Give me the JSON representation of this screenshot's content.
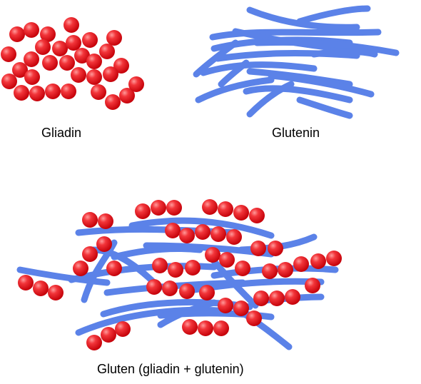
{
  "colors": {
    "gliadin_ball": "#e8141a",
    "glutenin_fiber": "#5b82e8",
    "background": "#ffffff"
  },
  "labels": {
    "gliadin": "Gliadin",
    "glutenin": "Glutenin",
    "gluten": "Gluten (gliadin + glutenin)"
  }
}
